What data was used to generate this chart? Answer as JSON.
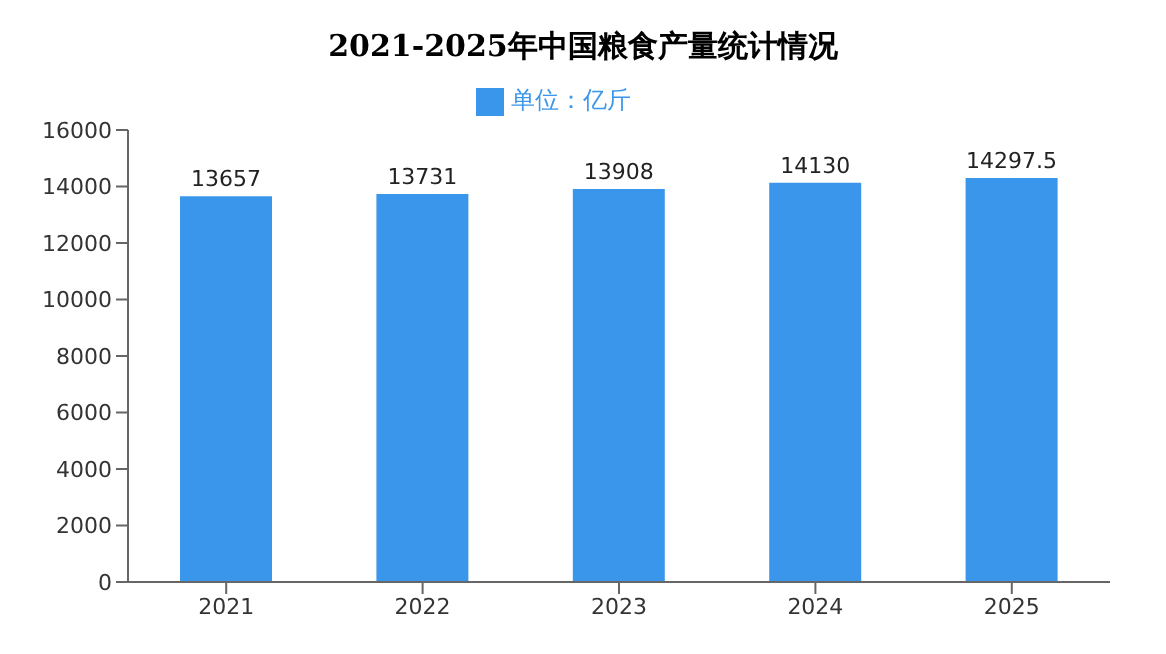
{
  "chart_data": {
    "type": "bar",
    "title": "2021-2025年中国粮食产量统计情况",
    "categories": [
      "2021",
      "2022",
      "2023",
      "2024",
      "2025"
    ],
    "series": [
      {
        "name": "单位：亿斤",
        "color": "#3a96ea",
        "values": [
          13657,
          13731,
          13908,
          14130,
          14297.5
        ]
      }
    ],
    "ylim": [
      0,
      16000
    ],
    "yticks": [
      0,
      2000,
      4000,
      6000,
      8000,
      10000,
      12000,
      14000,
      16000
    ],
    "grid": false,
    "legend": "top",
    "data_labels": true
  }
}
